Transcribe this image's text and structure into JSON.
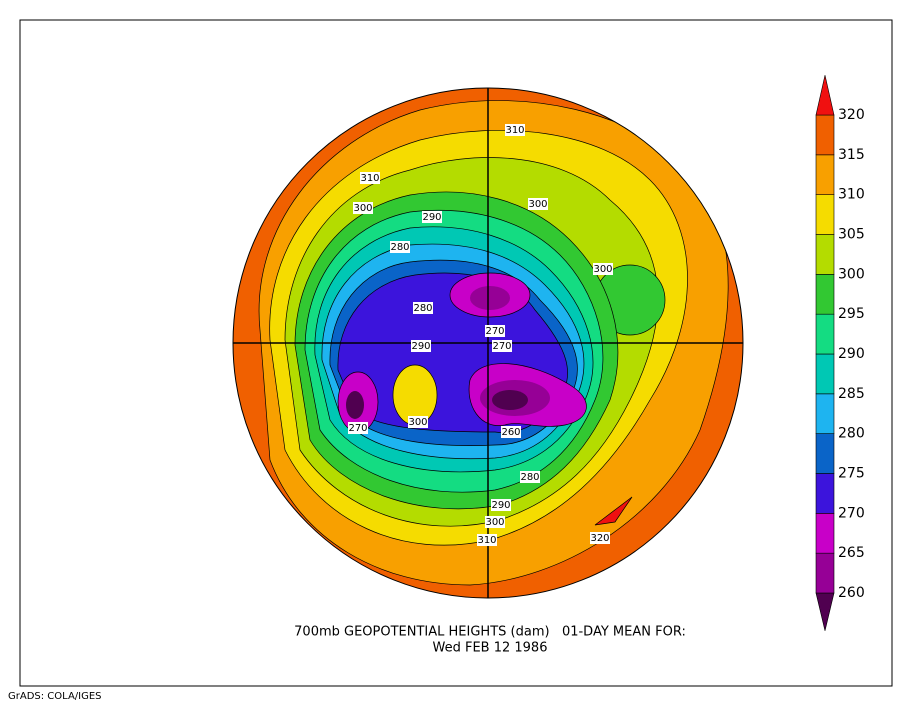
{
  "title_lines": [
    "700mb GEOPOTENTIAL HEIGHTS (dam)   01-DAY MEAN FOR:",
    "Wed FEB 12 1986"
  ],
  "footer": "GrADS: COLA/IGES",
  "colorbar": {
    "levels": [
      260,
      265,
      270,
      275,
      280,
      285,
      290,
      295,
      300,
      305,
      310,
      315,
      320
    ],
    "colors": [
      "#500050",
      "#960096",
      "#c800c8",
      "#3c14dc",
      "#0a64c8",
      "#1eb4f0",
      "#00c8b4",
      "#14dc82",
      "#32c832",
      "#b4dc00",
      "#f5dc00",
      "#f8a000",
      "#f06000",
      "#f01010"
    ]
  },
  "contour_labels": [
    310,
    310,
    300,
    290,
    300,
    280,
    300,
    280,
    270,
    290,
    270,
    270,
    300,
    260,
    280,
    290,
    300,
    310,
    320
  ]
}
